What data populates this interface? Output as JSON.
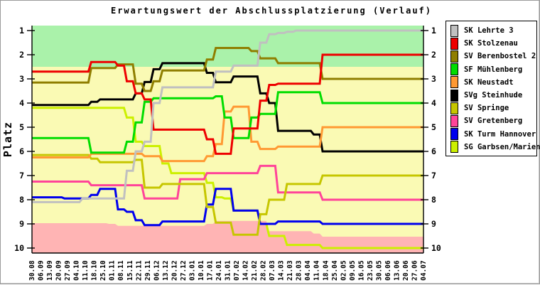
{
  "title": "Erwartungswert der Abschlussplatzierung (Verlauf)",
  "y_axis": {
    "label": "Platz",
    "ticks": [
      1,
      2,
      3,
      4,
      5,
      6,
      7,
      8,
      9,
      10
    ]
  },
  "legend": [
    {
      "team": "SK Lehrte 3",
      "color": "#C0C0C0"
    },
    {
      "team": "SK Stolzenau",
      "color": "#EE0000"
    },
    {
      "team": "SV Berenbostel 2",
      "color": "#8F7E00"
    },
    {
      "team": "SF Mühlenberg",
      "color": "#00DD00"
    },
    {
      "team": "SK Neustadt",
      "color": "#FF9933"
    },
    {
      "team": "SVg Steinhude",
      "color": "#000000"
    },
    {
      "team": "SV Springe",
      "color": "#C6C600"
    },
    {
      "team": "SV Gretenberg",
      "color": "#FF4499"
    },
    {
      "team": "SK Turm Hannover",
      "color": "#0000EE"
    },
    {
      "team": "SG Garbsen/Marienw",
      "color": "#CCF000"
    }
  ],
  "chart_data": {
    "type": "line",
    "title": "Erwartungswert der Abschlussplatzierung (Verlauf)",
    "xlabel": "",
    "ylabel": "Platz",
    "ylim": [
      0.8,
      10.2
    ],
    "y_axis_inverted": true,
    "grid": false,
    "legend_position": "right",
    "x_label_rotation": -90,
    "x": [
      "30.08",
      "06.09",
      "13.09",
      "20.09",
      "27.09",
      "04.10",
      "11.10",
      "18.10",
      "25.10",
      "01.11",
      "08.11",
      "15.11",
      "22.11",
      "29.11",
      "06.12",
      "13.12",
      "20.12",
      "27.12",
      "03.01",
      "10.01",
      "17.01",
      "24.01",
      "31.01",
      "07.02",
      "14.02",
      "21.02",
      "28.02",
      "07.03",
      "14.03",
      "21.03",
      "28.03",
      "04.04",
      "11.04",
      "18.04",
      "25.04",
      "02.05",
      "09.05",
      "16.05",
      "23.05",
      "30.05",
      "06.06",
      "13.06",
      "20.06",
      "27.06",
      "04.07"
    ],
    "zones": {
      "promotion": {
        "color": "#AAF2AA",
        "from_platz": 0.8,
        "to_platz": 2.5
      },
      "midfield": {
        "color": "#FAFAB4",
        "from_platz": 0.8,
        "to_platz": 10.2
      },
      "relegation": {
        "color": "#FFB4B4",
        "to_platz": 10.2,
        "top_by_week": [
          8.97,
          8.97,
          8.97,
          8.97,
          8.97,
          8.97,
          8.97,
          8.97,
          8.97,
          9.0,
          9.08,
          9.08,
          9.08,
          9.08,
          9.08,
          9.08,
          9.08,
          9.08,
          9.08,
          9.08,
          9.0,
          8.88,
          8.88,
          8.88,
          8.88,
          8.88,
          8.88,
          9.3,
          9.3,
          9.3,
          9.3,
          9.3,
          9.4,
          9.53,
          9.53,
          9.53,
          9.53,
          9.53,
          9.53,
          9.53,
          9.53,
          9.53,
          9.53,
          9.53,
          9.53
        ]
      }
    },
    "series": [
      {
        "name": "SK Lehrte 3",
        "color": "#C0C0C0",
        "values": [
          8.1,
          8.1,
          8.1,
          8.1,
          8.1,
          8.1,
          7.95,
          7.95,
          7.95,
          7.95,
          7.95,
          6.8,
          6.0,
          5.6,
          4.0,
          3.35,
          3.35,
          3.35,
          3.35,
          3.35,
          3.35,
          2.7,
          2.7,
          2.45,
          2.45,
          2.45,
          1.5,
          1.15,
          1.1,
          1.05,
          1.0,
          1.0,
          1.0,
          1.0,
          1.0,
          1.0,
          1.0,
          1.0,
          1.0,
          1.0,
          1.0,
          1.0,
          1.0,
          1.0,
          1.0
        ]
      },
      {
        "name": "SK Stolzenau",
        "color": "#EE0000",
        "values": [
          2.7,
          2.7,
          2.7,
          2.7,
          2.7,
          2.7,
          2.7,
          2.3,
          2.3,
          2.3,
          2.45,
          3.1,
          3.6,
          3.85,
          5.1,
          5.1,
          5.1,
          5.1,
          5.1,
          5.1,
          5.5,
          6.1,
          6.1,
          5.05,
          5.05,
          5.05,
          3.9,
          3.25,
          3.2,
          3.2,
          3.2,
          3.2,
          3.2,
          2.0,
          2.0,
          2.0,
          2.0,
          2.0,
          2.0,
          2.0,
          2.0,
          2.0,
          2.0,
          2.0,
          2.0
        ]
      },
      {
        "name": "SV Berenbostel 2",
        "color": "#8F7E00",
        "values": [
          3.15,
          3.15,
          3.15,
          3.15,
          3.15,
          3.15,
          3.15,
          2.55,
          2.55,
          2.55,
          2.4,
          2.4,
          3.2,
          3.5,
          3.1,
          2.65,
          2.65,
          2.65,
          2.65,
          2.65,
          2.2,
          1.72,
          1.72,
          1.72,
          1.72,
          1.85,
          2.15,
          2.15,
          2.35,
          2.35,
          2.35,
          2.35,
          2.35,
          3.0,
          3.0,
          3.0,
          3.0,
          3.0,
          3.0,
          3.0,
          3.0,
          3.0,
          3.0,
          3.0,
          3.0
        ]
      },
      {
        "name": "SF Mühlenberg",
        "color": "#00DD00",
        "values": [
          5.45,
          5.45,
          5.45,
          5.45,
          5.45,
          5.45,
          5.45,
          6.05,
          6.05,
          6.05,
          6.05,
          5.6,
          4.8,
          3.95,
          3.8,
          3.8,
          3.8,
          3.8,
          3.8,
          3.8,
          3.8,
          3.72,
          4.6,
          5.45,
          5.45,
          4.6,
          4.45,
          4.45,
          3.55,
          3.55,
          3.55,
          3.55,
          3.55,
          4.0,
          4.0,
          4.0,
          4.0,
          4.0,
          4.0,
          4.0,
          4.0,
          4.0,
          4.0,
          4.0,
          4.0
        ]
      },
      {
        "name": "SK Neustadt",
        "color": "#FF9933",
        "values": [
          6.25,
          6.25,
          6.25,
          6.25,
          6.25,
          6.25,
          6.25,
          6.1,
          6.1,
          6.1,
          6.1,
          6.1,
          6.1,
          6.2,
          6.2,
          6.4,
          6.4,
          6.4,
          6.4,
          6.4,
          6.2,
          5.7,
          4.35,
          4.15,
          4.15,
          5.6,
          5.9,
          5.9,
          5.8,
          5.8,
          5.8,
          5.8,
          5.8,
          5.0,
          5.0,
          5.0,
          5.0,
          5.0,
          5.0,
          5.0,
          5.0,
          5.0,
          5.0,
          5.0,
          5.0
        ]
      },
      {
        "name": "SVg Steinhude",
        "color": "#000000",
        "values": [
          4.08,
          4.08,
          4.08,
          4.08,
          4.08,
          4.08,
          4.08,
          3.95,
          3.85,
          3.85,
          3.85,
          3.85,
          3.6,
          3.13,
          2.6,
          2.35,
          2.35,
          2.35,
          2.35,
          2.35,
          2.75,
          3.14,
          3.14,
          2.9,
          2.9,
          2.9,
          3.6,
          4.0,
          5.15,
          5.15,
          5.15,
          5.15,
          5.3,
          6.0,
          6.0,
          6.0,
          6.0,
          6.0,
          6.0,
          6.0,
          6.0,
          6.0,
          6.0,
          6.0,
          6.0
        ]
      },
      {
        "name": "SV Springe",
        "color": "#C6C600",
        "values": [
          6.15,
          6.15,
          6.15,
          6.15,
          6.15,
          6.15,
          6.15,
          6.3,
          6.45,
          6.45,
          6.45,
          6.45,
          6.35,
          7.5,
          7.5,
          7.35,
          7.35,
          7.35,
          7.35,
          7.35,
          8.3,
          8.95,
          8.95,
          9.45,
          9.45,
          9.45,
          8.6,
          8.0,
          8.0,
          7.35,
          7.35,
          7.35,
          7.35,
          7.0,
          7.0,
          7.0,
          7.0,
          7.0,
          7.0,
          7.0,
          7.0,
          7.0,
          7.0,
          7.0,
          7.0
        ]
      },
      {
        "name": "SV Gretenberg",
        "color": "#FF4499",
        "values": [
          7.25,
          7.25,
          7.25,
          7.25,
          7.25,
          7.25,
          7.25,
          7.4,
          7.4,
          7.4,
          7.4,
          7.4,
          7.4,
          7.95,
          7.95,
          7.95,
          7.95,
          7.15,
          7.15,
          7.15,
          6.9,
          6.9,
          6.9,
          6.9,
          6.9,
          6.9,
          6.6,
          6.6,
          7.7,
          7.7,
          7.7,
          7.7,
          7.7,
          8.0,
          8.0,
          8.0,
          8.0,
          8.0,
          8.0,
          8.0,
          8.0,
          8.0,
          8.0,
          8.0,
          8.0
        ]
      },
      {
        "name": "SK Turm Hannover",
        "color": "#0000EE",
        "values": [
          7.9,
          7.9,
          7.9,
          7.9,
          7.95,
          7.95,
          7.95,
          7.8,
          7.55,
          7.55,
          8.4,
          8.5,
          8.85,
          9.05,
          9.05,
          8.9,
          8.9,
          8.9,
          8.9,
          8.9,
          8.2,
          7.55,
          7.55,
          8.45,
          8.45,
          8.45,
          9.0,
          9.0,
          8.9,
          8.9,
          8.9,
          8.9,
          8.9,
          9.0,
          9.0,
          9.0,
          9.0,
          9.0,
          9.0,
          9.0,
          9.0,
          9.0,
          9.0,
          9.0,
          9.0
        ]
      },
      {
        "name": "SG Garbsen/Marienw",
        "color": "#CCF000",
        "values": [
          4.2,
          4.2,
          4.2,
          4.2,
          4.2,
          4.2,
          4.2,
          4.2,
          4.2,
          4.2,
          4.2,
          4.6,
          5.6,
          5.78,
          5.78,
          6.5,
          6.9,
          6.9,
          6.9,
          6.9,
          7.3,
          7.9,
          7.95,
          8.45,
          8.45,
          8.45,
          9.0,
          9.5,
          9.5,
          9.87,
          9.87,
          9.87,
          9.87,
          10.0,
          10.0,
          10.0,
          10.0,
          10.0,
          10.0,
          10.0,
          10.0,
          10.0,
          10.0,
          10.0,
          10.0
        ]
      }
    ]
  }
}
